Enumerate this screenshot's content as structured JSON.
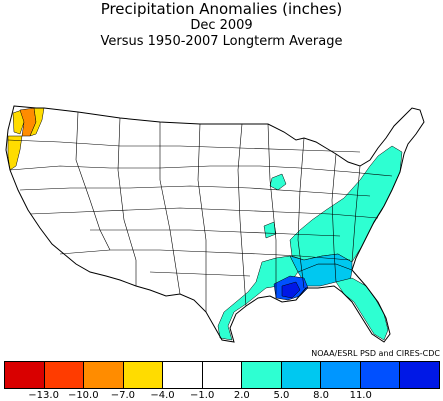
{
  "header": {
    "title": "Precipitation Anomalies (inches)",
    "period": "Dec 2009",
    "baseline": "Versus 1950-2007 Longterm Average"
  },
  "credit": "NOAA/ESRL PSD and CIRES-CDC",
  "legend": {
    "colors": [
      "#d90000",
      "#ff3c00",
      "#ff8c00",
      "#ffdc00",
      "#ffffff",
      "#ffffff",
      "#2effd2",
      "#00c8f0",
      "#0096ff",
      "#0050ff",
      "#0018e6"
    ],
    "tick_labels": [
      "-13.0",
      "-10.0",
      "-7.0",
      "-4.0",
      "-1.0",
      "2.0",
      "5.0",
      "8.0",
      "11.0"
    ]
  },
  "map": {
    "regions": [
      {
        "name": "wa-coast",
        "class": "-7.0 to -4.0",
        "color": "#ffdc00"
      },
      {
        "name": "wa-west",
        "class": "-10.0 to -7.0",
        "color": "#ff8c00"
      },
      {
        "name": "wa-cascades",
        "class": "-7.0 to -4.0",
        "color": "#ffdc00"
      },
      {
        "name": "or-coast",
        "class": "-7.0 to -4.0",
        "color": "#ffdc00"
      },
      {
        "name": "southeast-atlantic",
        "class": "2.0 to 5.0",
        "color": "#2effd2"
      },
      {
        "name": "gulf-coast-west",
        "class": "2.0 to 5.0",
        "color": "#2effd2"
      },
      {
        "name": "gulf-coast-east",
        "class": "5.0 to 8.0",
        "color": "#00c8f0"
      },
      {
        "name": "alabama-south",
        "class": "5.0 to 8.0",
        "color": "#00c8f0"
      },
      {
        "name": "louisiana-south",
        "class": "8.0 to 11.0",
        "color": "#0050ff"
      },
      {
        "name": "mississippi-coast",
        "class": "> 11.0",
        "color": "#0018e6"
      },
      {
        "name": "missouri-spot",
        "class": "2.0 to 5.0",
        "color": "#2effd2"
      },
      {
        "name": "arkansas-spot",
        "class": "2.0 to 5.0",
        "color": "#2effd2"
      },
      {
        "name": "florida",
        "class": "2.0 to 5.0",
        "color": "#2effd2"
      }
    ]
  }
}
